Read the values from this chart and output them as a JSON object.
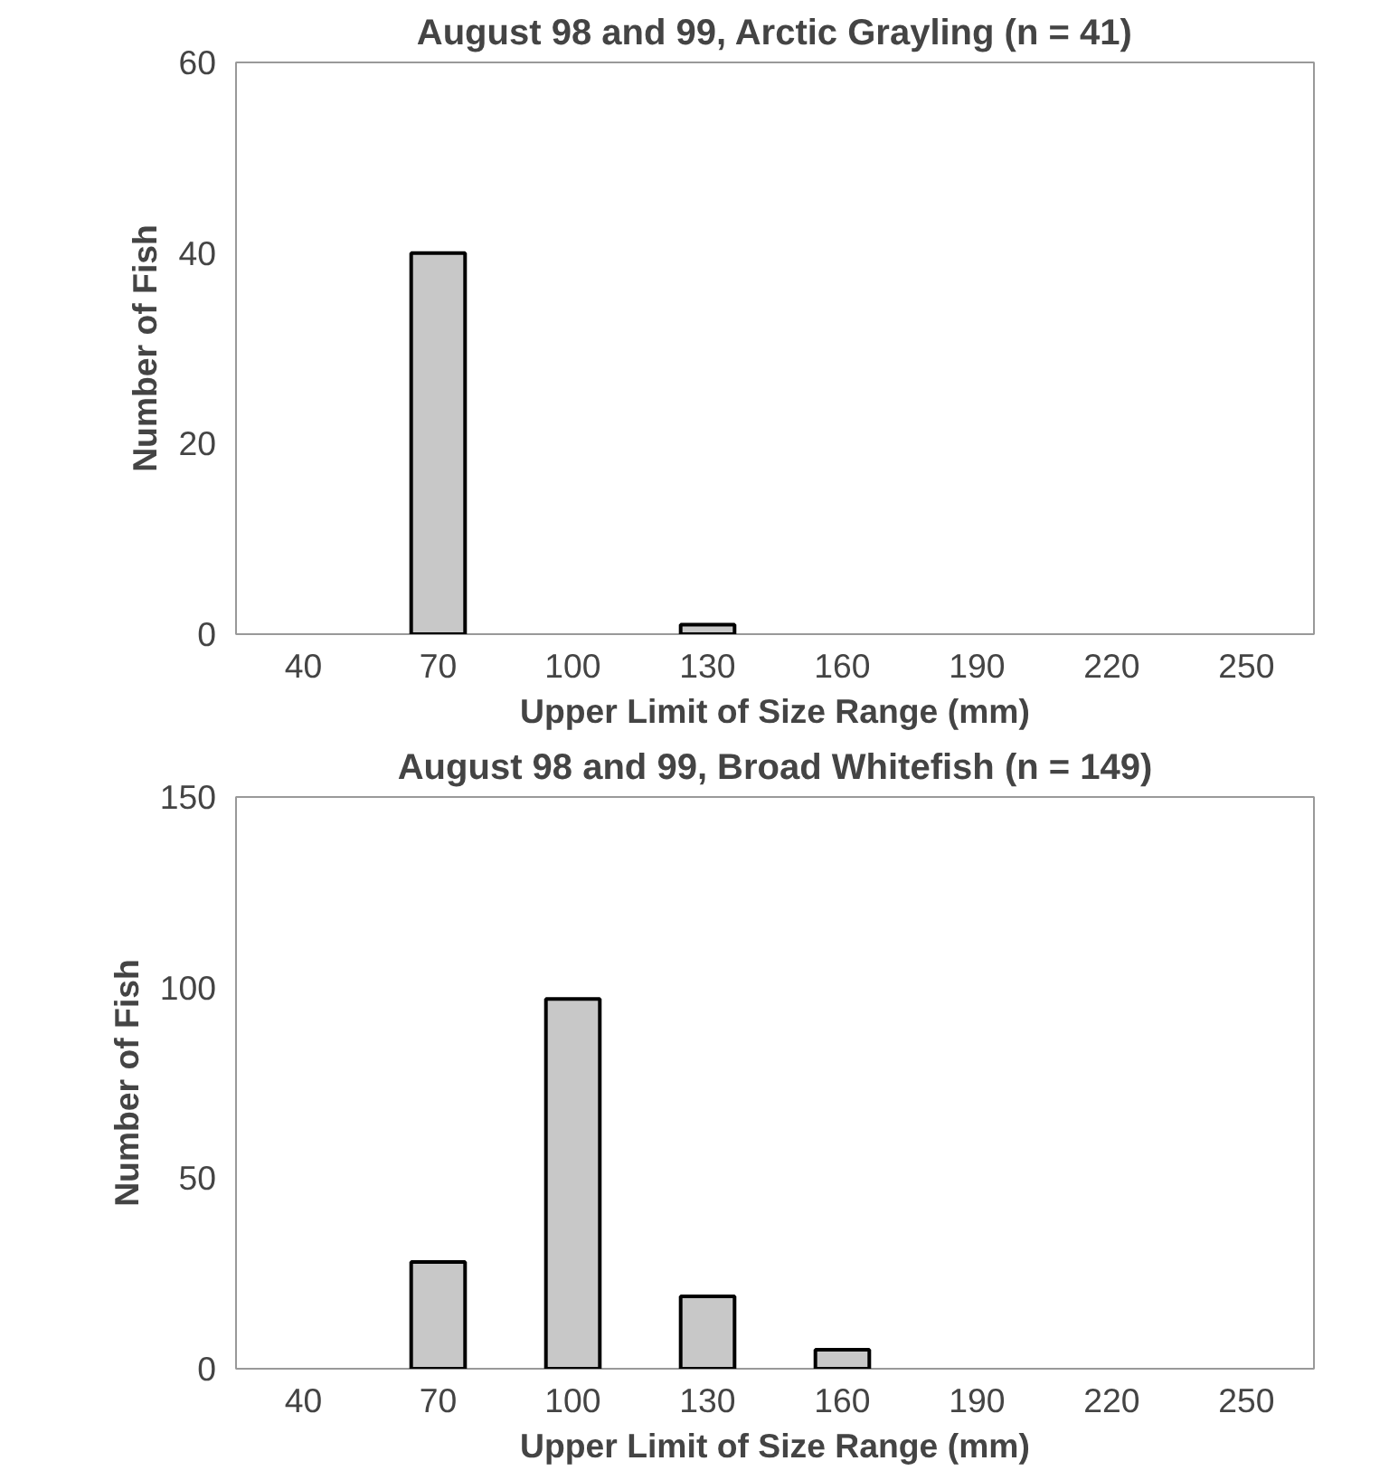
{
  "chart_data": [
    {
      "type": "bar",
      "title": "August 98 and 99, Arctic Grayling (n = 41)",
      "xlabel": "Upper Limit of Size Range (mm)",
      "ylabel": "Number of Fish",
      "categories": [
        "40",
        "70",
        "100",
        "130",
        "160",
        "190",
        "220",
        "250"
      ],
      "values": [
        0,
        40,
        0,
        1,
        0,
        0,
        0,
        0
      ],
      "color": "#c8c8c8",
      "ylim": [
        0,
        60
      ],
      "yticks": [
        0,
        20,
        40,
        60
      ],
      "grid": false,
      "legend": false
    },
    {
      "type": "bar",
      "title": "August 98 and 99, Broad Whitefish (n = 149)",
      "xlabel": "Upper Limit of Size Range (mm)",
      "ylabel": "Number of Fish",
      "categories": [
        "40",
        "70",
        "100",
        "130",
        "160",
        "190",
        "220",
        "250"
      ],
      "values": [
        0,
        28,
        97,
        19,
        5,
        0,
        0,
        0
      ],
      "color": "#c8c8c8",
      "ylim": [
        0,
        150
      ],
      "yticks": [
        0,
        50,
        100,
        150
      ],
      "grid": false,
      "legend": false
    }
  ]
}
